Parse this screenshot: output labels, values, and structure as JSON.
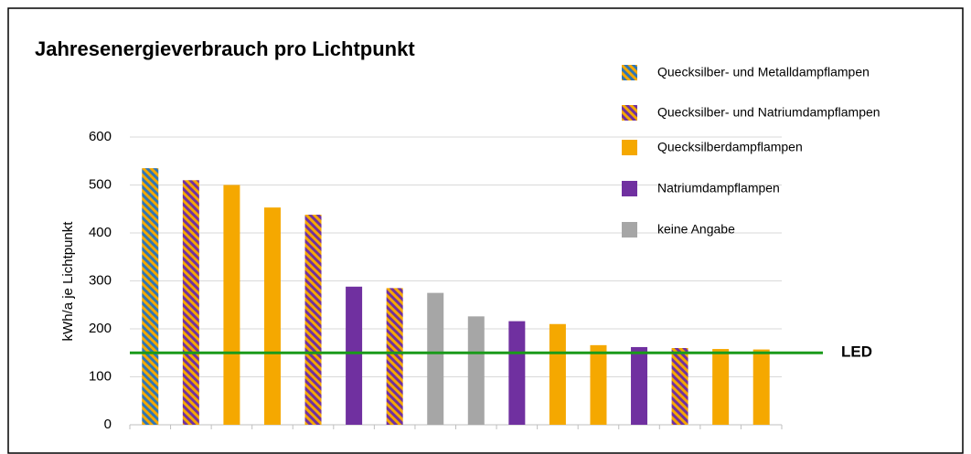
{
  "chart_data": {
    "type": "bar",
    "title": "Jahresenergieverbrauch pro Lichtpunkt",
    "y_label": "kWh/a je Lichtpunkt",
    "categories": [
      null,
      null,
      null,
      null,
      null,
      null,
      null,
      null,
      null,
      null,
      null,
      null,
      null,
      null,
      null,
      null
    ],
    "series": [
      {
        "name": "Quecksilber- und Metalldampflampen",
        "color": "#2e75b6",
        "hatch_color": "#f5a800",
        "values": [
          535,
          null,
          null,
          null,
          null,
          null,
          null,
          null,
          null,
          null,
          null,
          null,
          null,
          null,
          null,
          null
        ]
      },
      {
        "name": "Quecksilber- und Natriumdampflampen",
        "color": "#7030a0",
        "hatch_color": "#f5a800",
        "values": [
          null,
          510,
          null,
          null,
          438,
          null,
          285,
          null,
          null,
          null,
          null,
          null,
          null,
          160,
          null,
          null
        ]
      },
      {
        "name": "Quecksilberdampflampen",
        "color": "#f5a800",
        "values": [
          null,
          null,
          500,
          453,
          null,
          null,
          null,
          null,
          null,
          null,
          210,
          166,
          null,
          null,
          158,
          157
        ]
      },
      {
        "name": "Natriumdampflampen",
        "color": "#7030a0",
        "values": [
          null,
          null,
          null,
          null,
          null,
          288,
          null,
          null,
          null,
          216,
          null,
          null,
          162,
          null,
          null,
          null
        ]
      },
      {
        "name": "keine Angabe",
        "color": "#a6a6a6",
        "values": [
          null,
          null,
          null,
          null,
          null,
          null,
          null,
          275,
          226,
          null,
          null,
          null,
          null,
          null,
          null,
          null
        ]
      }
    ],
    "reference_line": {
      "value": 150,
      "label": "LED",
      "color": "#1a9a1a"
    },
    "ylim": [
      0,
      600
    ],
    "yticks": [
      0,
      100,
      200,
      300,
      400,
      500,
      600
    ],
    "grid": true,
    "legend": "top-right"
  }
}
